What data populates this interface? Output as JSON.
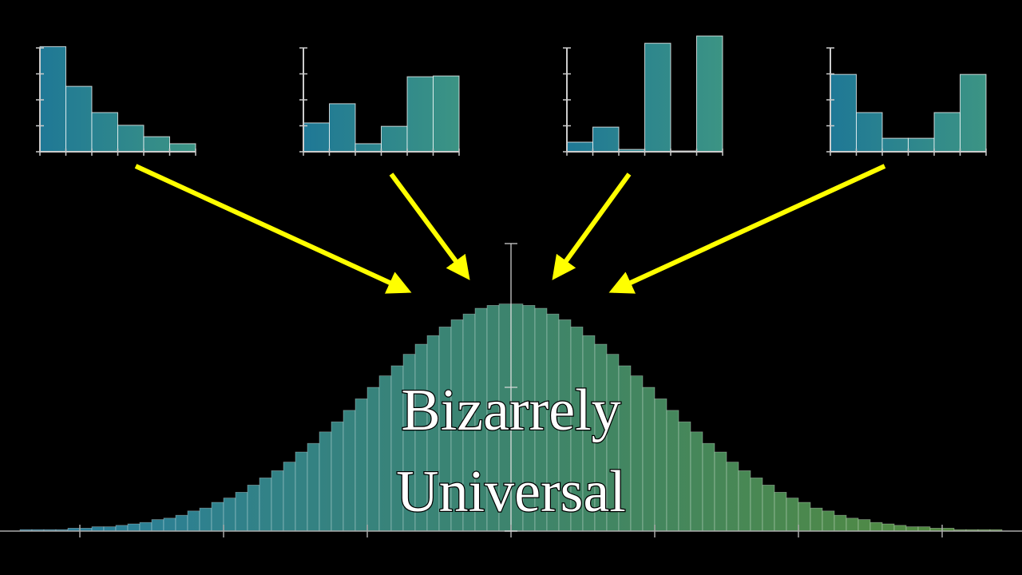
{
  "chart_data": [
    {
      "type": "bar",
      "values": [
        4.05,
        2.52,
        1.51,
        1.02,
        0.58,
        0.31
      ],
      "ylim": [
        0,
        4
      ],
      "yticks": [
        0,
        1,
        2,
        3,
        4
      ],
      "colors": [
        "#1f7896",
        "#3c9484"
      ]
    },
    {
      "type": "bar",
      "values": [
        1.11,
        1.85,
        0.31,
        0.98,
        2.89,
        2.92
      ],
      "ylim": [
        0,
        4
      ],
      "yticks": [
        0,
        1,
        2,
        3,
        4
      ],
      "colors": [
        "#1f7896",
        "#3c9484"
      ]
    },
    {
      "type": "bar",
      "values": [
        0.37,
        0.95,
        0.09,
        4.18,
        0.03,
        4.46
      ],
      "ylim": [
        0,
        4
      ],
      "yticks": [
        0,
        1,
        2,
        3,
        4
      ],
      "colors": [
        "#1f7896",
        "#3c9484"
      ]
    },
    {
      "type": "bar",
      "values": [
        2.98,
        1.51,
        0.52,
        0.52,
        1.51,
        2.98
      ],
      "ylim": [
        0,
        4
      ],
      "yticks": [
        0,
        1,
        2,
        3,
        4
      ],
      "colors": [
        "#1f7896",
        "#3c9484"
      ]
    },
    {
      "type": "bar",
      "title": [
        "Bizarrely",
        "Universal"
      ],
      "categories": [
        null,
        null,
        null,
        null,
        null,
        null,
        null,
        null,
        null,
        null,
        null,
        null,
        null,
        null,
        null,
        null,
        null,
        null,
        null,
        null,
        null,
        null,
        null,
        null,
        null,
        null,
        null,
        null,
        null,
        null,
        null,
        null,
        null,
        null,
        null,
        null,
        null,
        null,
        null,
        null,
        null,
        null,
        null,
        null,
        null,
        null,
        null,
        null,
        null,
        null,
        null,
        null,
        null,
        null,
        null,
        null,
        null,
        null,
        null,
        null,
        null,
        null,
        null,
        null,
        null,
        null,
        null,
        null,
        null,
        null,
        null,
        null,
        null,
        null,
        null,
        null,
        null,
        null,
        null,
        null,
        null,
        null,
        null,
        null
      ],
      "values": [
        0,
        0.01,
        0.01,
        0.01,
        0.01,
        0.02,
        0.02,
        0.03,
        0.03,
        0.04,
        0.05,
        0.06,
        0.08,
        0.09,
        0.11,
        0.14,
        0.16,
        0.2,
        0.23,
        0.27,
        0.32,
        0.37,
        0.42,
        0.48,
        0.55,
        0.61,
        0.69,
        0.76,
        0.84,
        0.92,
        1,
        1.08,
        1.15,
        1.23,
        1.3,
        1.36,
        1.42,
        1.47,
        1.51,
        1.55,
        1.57,
        1.58,
        1.58,
        1.57,
        1.55,
        1.51,
        1.47,
        1.42,
        1.36,
        1.3,
        1.23,
        1.15,
        1.08,
        1,
        0.92,
        0.84,
        0.76,
        0.69,
        0.61,
        0.55,
        0.48,
        0.42,
        0.37,
        0.32,
        0.27,
        0.23,
        0.2,
        0.16,
        0.14,
        0.11,
        0.09,
        0.08,
        0.06,
        0.05,
        0.04,
        0.03,
        0.03,
        0.02,
        0.02,
        0.01,
        0.01,
        0.01,
        0.01,
        0
      ],
      "xlim": [
        -3.5556,
        3.5556
      ],
      "xticks": [
        -3,
        -2,
        -1,
        0,
        1,
        2,
        3
      ],
      "ylim": [
        0,
        2
      ],
      "yticks": [
        0,
        1,
        2
      ],
      "colors": [
        "#2a8cb4",
        "#5e9a3e"
      ]
    }
  ]
}
